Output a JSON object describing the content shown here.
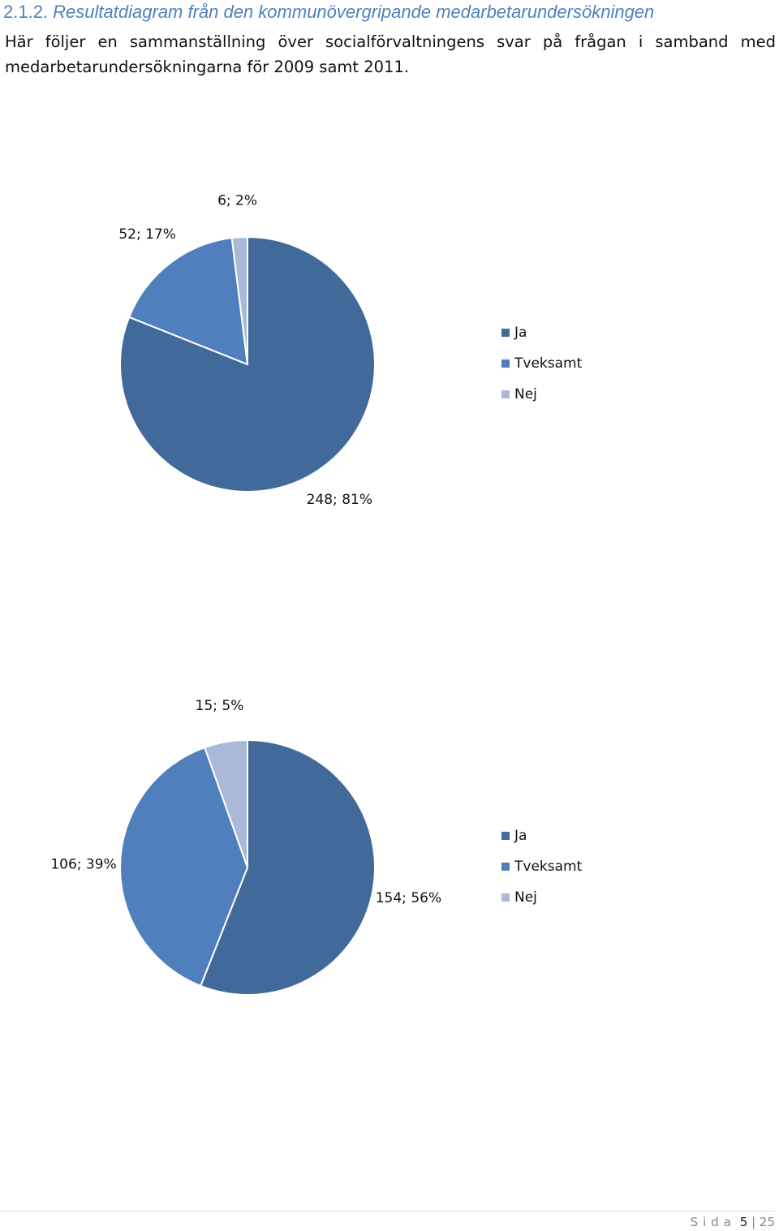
{
  "heading": {
    "number": "2.1.2.",
    "title": "Resultatdiagram från den kommunövergripande medarbetarundersökningen"
  },
  "intro": "Här följer en sammanställning över socialförvaltningens svar på frågan i samband med medarbetarundersökningarna för 2009 samt 2011.",
  "chart_data": [
    {
      "type": "pie",
      "categories": [
        "Ja",
        "Tveksamt",
        "Nej"
      ],
      "values": [
        248,
        52,
        6
      ],
      "value_labels": [
        "248; 81%",
        "52; 17%",
        "6; 2%"
      ],
      "colors": [
        "#416a9b",
        "#4f80bd",
        "#a9b9d7"
      ]
    },
    {
      "type": "pie",
      "categories": [
        "Ja",
        "Tveksamt",
        "Nej"
      ],
      "values": [
        154,
        106,
        15
      ],
      "value_labels": [
        "154; 56%",
        "106; 39%",
        "15; 5%"
      ],
      "colors": [
        "#416a9b",
        "#4f80bd",
        "#a9b9d7"
      ]
    }
  ],
  "footer": {
    "label": "Sida",
    "page": "5",
    "total": "25"
  }
}
